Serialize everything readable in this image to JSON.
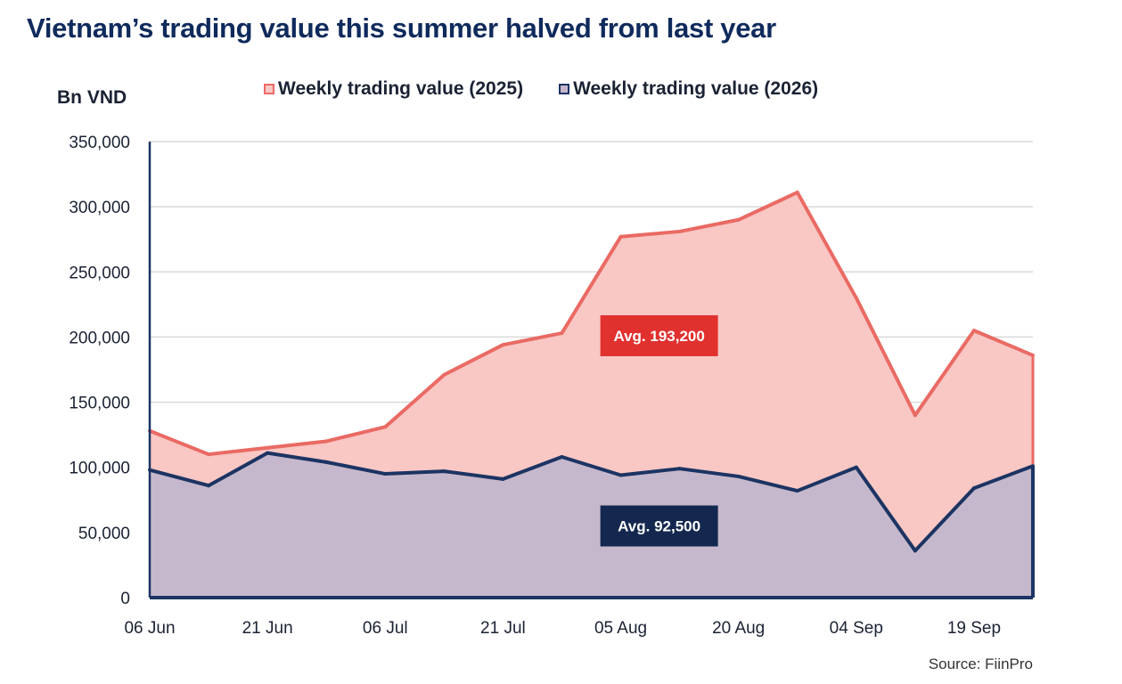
{
  "header": {
    "title": "Vietnam’s trading value this summer halved from last year",
    "source": "Source: FiinPro"
  },
  "colors": {
    "series_2025_line": "#ea6a64",
    "series_2025_fill": "#f9c7c4",
    "series_2026_line": "#1c3463",
    "series_2026_fill": "#c6b8cc",
    "avg_2025_box": "#e0312f",
    "avg_2026_box": "#14284f",
    "grid": "#d9d9d9",
    "axis": "#1c3463"
  },
  "chart_data": {
    "type": "area",
    "title": "Vietnam’s trading value this summer halved from last year",
    "ylabel": "Bn VND",
    "xlabel": "",
    "ylim": [
      0,
      350000
    ],
    "yticks": [
      0,
      50000,
      100000,
      150000,
      200000,
      250000,
      300000,
      350000
    ],
    "ytick_labels": [
      "0",
      "50,000",
      "100,000",
      "150,000",
      "200,000",
      "250,000",
      "300,000",
      "350,000"
    ],
    "x_tick_labels": [
      "06 Jun",
      "21 Jun",
      "06 Jul",
      "21 Jul",
      "05 Aug",
      "20 Aug",
      "04 Sep",
      "19 Sep"
    ],
    "x_tick_indices": [
      0,
      2,
      4,
      6,
      8,
      10,
      12,
      14
    ],
    "grid": true,
    "legend": "top",
    "series": [
      {
        "name": "Weekly trading value (2025)",
        "values": [
          128000,
          110000,
          115000,
          120000,
          131000,
          171000,
          194000,
          203000,
          277000,
          281000,
          290000,
          311000,
          230000,
          140000,
          205000,
          186000
        ]
      },
      {
        "name": "Weekly trading value (2026)",
        "values": [
          98000,
          86000,
          111000,
          104000,
          95000,
          97000,
          91000,
          108000,
          94000,
          99000,
          93000,
          82000,
          100000,
          36000,
          84000,
          101000
        ]
      }
    ],
    "annotations": [
      {
        "text": "Avg. 193,200",
        "series": "Weekly trading value (2025)",
        "x_index": 9.5,
        "y": 201000
      },
      {
        "text": "Avg. 92,500",
        "series": "Weekly trading value (2026)",
        "x_index": 9.5,
        "y": 55000
      }
    ]
  }
}
